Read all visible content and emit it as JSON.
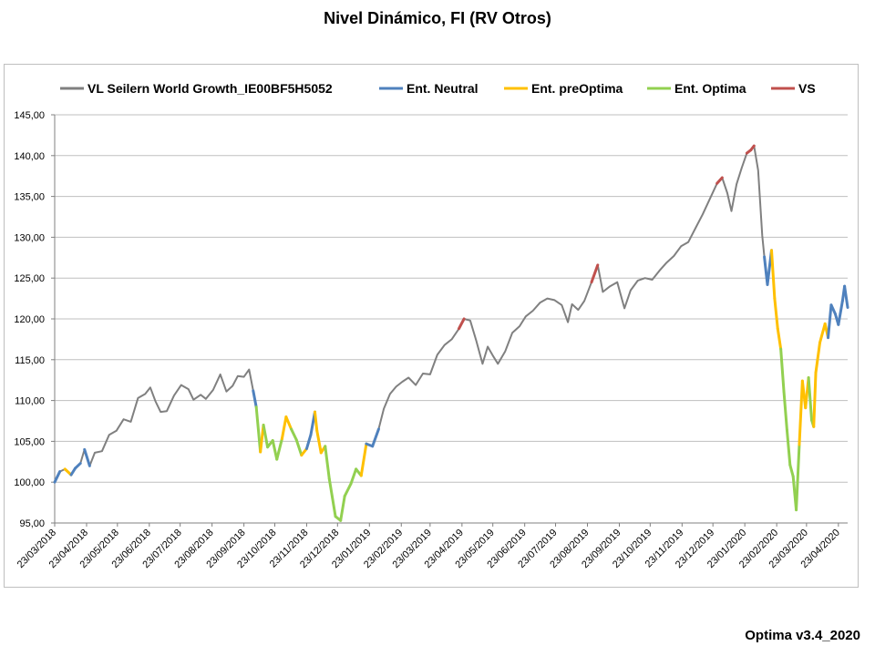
{
  "title": "Nivel Dinámico, FI (RV Otros)",
  "footer": "Optima v3.4_2020",
  "chart_data": {
    "type": "line",
    "title": "Nivel Dinámico, FI (RV Otros)",
    "ylim": [
      95,
      145
    ],
    "yticks": [
      "95,00",
      "100,00",
      "105,00",
      "110,00",
      "115,00",
      "120,00",
      "125,00",
      "130,00",
      "135,00",
      "140,00",
      "145,00"
    ],
    "xticks": [
      "23/03/2018",
      "23/04/2018",
      "23/05/2018",
      "23/06/2018",
      "23/07/2018",
      "23/08/2018",
      "23/09/2018",
      "23/10/2018",
      "23/11/2018",
      "23/12/2018",
      "23/01/2019",
      "23/02/2019",
      "23/03/2019",
      "23/04/2019",
      "23/05/2019",
      "23/06/2019",
      "23/07/2019",
      "23/08/2019",
      "23/09/2019",
      "23/10/2019",
      "23/11/2019",
      "23/12/2019",
      "23/01/2020",
      "23/02/2020",
      "23/03/2020",
      "23/04/2020"
    ],
    "grid": true,
    "legend_position": "top",
    "series": [
      {
        "name": "VL Seilern World Growth_IE00BF5H5052",
        "color": "#808080"
      },
      {
        "name": "Ent. Neutral",
        "color": "#4f81bd"
      },
      {
        "name": "Ent. preOptima",
        "color": "#ffc000"
      },
      {
        "name": "Ent. Optima",
        "color": "#92d050"
      },
      {
        "name": "VS",
        "color": "#c0504d"
      }
    ],
    "points": [
      [
        "2018-03-23",
        100.0,
        "n"
      ],
      [
        "2018-03-28",
        101.3,
        "n"
      ],
      [
        "2018-04-02",
        101.6,
        "g"
      ],
      [
        "2018-04-08",
        100.9,
        "p"
      ],
      [
        "2018-04-12",
        101.7,
        "n"
      ],
      [
        "2018-04-17",
        102.3,
        "n"
      ],
      [
        "2018-04-21",
        104.0,
        "g"
      ],
      [
        "2018-04-26",
        102.0,
        "n"
      ],
      [
        "2018-05-01",
        103.6,
        "g"
      ],
      [
        "2018-05-08",
        103.8,
        "g"
      ],
      [
        "2018-05-15",
        105.8,
        "g"
      ],
      [
        "2018-05-22",
        106.3,
        "g"
      ],
      [
        "2018-05-29",
        107.7,
        "g"
      ],
      [
        "2018-06-05",
        107.4,
        "g"
      ],
      [
        "2018-06-12",
        110.3,
        "g"
      ],
      [
        "2018-06-19",
        110.8,
        "g"
      ],
      [
        "2018-06-24",
        111.6,
        "g"
      ],
      [
        "2018-06-29",
        109.9,
        "g"
      ],
      [
        "2018-07-04",
        108.6,
        "g"
      ],
      [
        "2018-07-10",
        108.7,
        "g"
      ],
      [
        "2018-07-17",
        110.6,
        "g"
      ],
      [
        "2018-07-24",
        111.9,
        "g"
      ],
      [
        "2018-07-31",
        111.4,
        "g"
      ],
      [
        "2018-08-05",
        110.1,
        "g"
      ],
      [
        "2018-08-12",
        110.7,
        "g"
      ],
      [
        "2018-08-17",
        110.2,
        "g"
      ],
      [
        "2018-08-24",
        111.3,
        "g"
      ],
      [
        "2018-08-31",
        113.2,
        "g"
      ],
      [
        "2018-09-06",
        111.1,
        "g"
      ],
      [
        "2018-09-12",
        111.8,
        "g"
      ],
      [
        "2018-09-17",
        113.0,
        "g"
      ],
      [
        "2018-09-23",
        112.9,
        "g"
      ],
      [
        "2018-09-28",
        113.8,
        "g"
      ],
      [
        "2018-10-02",
        111.2,
        "g"
      ],
      [
        "2018-10-05",
        109.2,
        "n"
      ],
      [
        "2018-10-09",
        103.7,
        "o"
      ],
      [
        "2018-10-12",
        107.0,
        "p"
      ],
      [
        "2018-10-16",
        104.3,
        "o"
      ],
      [
        "2018-10-21",
        105.1,
        "o"
      ],
      [
        "2018-10-25",
        102.8,
        "o"
      ],
      [
        "2018-10-30",
        105.3,
        "o"
      ],
      [
        "2018-11-03",
        108.0,
        "p"
      ],
      [
        "2018-11-08",
        106.5,
        "p"
      ],
      [
        "2018-11-13",
        105.2,
        "o"
      ],
      [
        "2018-11-18",
        103.3,
        "o"
      ],
      [
        "2018-11-23",
        104.1,
        "p"
      ],
      [
        "2018-11-27",
        105.8,
        "n"
      ],
      [
        "2018-12-01",
        108.6,
        "n"
      ],
      [
        "2018-12-03",
        106.3,
        "p"
      ],
      [
        "2018-12-07",
        103.6,
        "p"
      ],
      [
        "2018-12-11",
        104.4,
        "p"
      ],
      [
        "2018-12-15",
        100.4,
        "o"
      ],
      [
        "2018-12-21",
        95.8,
        "o"
      ],
      [
        "2018-12-26",
        95.3,
        "o"
      ],
      [
        "2018-12-30",
        98.3,
        "o"
      ],
      [
        "2019-01-05",
        99.8,
        "o"
      ],
      [
        "2019-01-10",
        101.6,
        "o"
      ],
      [
        "2019-01-15",
        100.8,
        "o"
      ],
      [
        "2019-01-20",
        104.7,
        "p"
      ],
      [
        "2019-01-26",
        104.4,
        "n"
      ],
      [
        "2019-02-01",
        106.5,
        "n"
      ],
      [
        "2019-02-06",
        109.0,
        "g"
      ],
      [
        "2019-02-12",
        110.8,
        "g"
      ],
      [
        "2019-02-18",
        111.7,
        "g"
      ],
      [
        "2019-02-24",
        112.3,
        "g"
      ],
      [
        "2019-03-02",
        112.8,
        "g"
      ],
      [
        "2019-03-09",
        111.9,
        "g"
      ],
      [
        "2019-03-16",
        113.3,
        "g"
      ],
      [
        "2019-03-23",
        113.2,
        "g"
      ],
      [
        "2019-03-30",
        115.6,
        "g"
      ],
      [
        "2019-04-06",
        116.8,
        "g"
      ],
      [
        "2019-04-13",
        117.5,
        "g"
      ],
      [
        "2019-04-20",
        118.8,
        "g"
      ],
      [
        "2019-04-25",
        120.0,
        "v"
      ],
      [
        "2019-05-01",
        119.8,
        "g"
      ],
      [
        "2019-05-07",
        117.3,
        "g"
      ],
      [
        "2019-05-13",
        114.5,
        "g"
      ],
      [
        "2019-05-18",
        116.6,
        "g"
      ],
      [
        "2019-05-23",
        115.5,
        "g"
      ],
      [
        "2019-05-28",
        114.5,
        "g"
      ],
      [
        "2019-06-04",
        116.0,
        "g"
      ],
      [
        "2019-06-11",
        118.3,
        "g"
      ],
      [
        "2019-06-18",
        119.1,
        "g"
      ],
      [
        "2019-06-24",
        120.3,
        "g"
      ],
      [
        "2019-07-01",
        121.0,
        "g"
      ],
      [
        "2019-07-08",
        122.0,
        "g"
      ],
      [
        "2019-07-15",
        122.5,
        "g"
      ],
      [
        "2019-07-22",
        122.3,
        "g"
      ],
      [
        "2019-07-29",
        121.7,
        "g"
      ],
      [
        "2019-08-04",
        119.6,
        "g"
      ],
      [
        "2019-08-08",
        121.8,
        "g"
      ],
      [
        "2019-08-14",
        121.1,
        "g"
      ],
      [
        "2019-08-20",
        122.2,
        "g"
      ],
      [
        "2019-08-27",
        124.5,
        "g"
      ],
      [
        "2019-09-02",
        126.6,
        "v"
      ],
      [
        "2019-09-07",
        123.3,
        "g"
      ],
      [
        "2019-09-14",
        124.0,
        "g"
      ],
      [
        "2019-09-21",
        124.5,
        "g"
      ],
      [
        "2019-09-28",
        121.3,
        "g"
      ],
      [
        "2019-10-04",
        123.5,
        "g"
      ],
      [
        "2019-10-11",
        124.7,
        "g"
      ],
      [
        "2019-10-18",
        125.0,
        "g"
      ],
      [
        "2019-10-25",
        124.8,
        "g"
      ],
      [
        "2019-11-01",
        125.9,
        "g"
      ],
      [
        "2019-11-08",
        126.9,
        "g"
      ],
      [
        "2019-11-15",
        127.7,
        "g"
      ],
      [
        "2019-11-22",
        128.9,
        "g"
      ],
      [
        "2019-11-29",
        129.4,
        "g"
      ],
      [
        "2019-12-06",
        131.1,
        "g"
      ],
      [
        "2019-12-13",
        132.8,
        "g"
      ],
      [
        "2019-12-20",
        134.7,
        "g"
      ],
      [
        "2019-12-27",
        136.6,
        "g"
      ],
      [
        "2020-01-01",
        137.3,
        "v"
      ],
      [
        "2020-01-06",
        135.4,
        "g"
      ],
      [
        "2020-01-10",
        133.2,
        "g"
      ],
      [
        "2020-01-15",
        136.5,
        "g"
      ],
      [
        "2020-01-20",
        138.5,
        "g"
      ],
      [
        "2020-01-25",
        140.3,
        "g"
      ],
      [
        "2020-01-29",
        140.7,
        "v"
      ],
      [
        "2020-02-01",
        141.2,
        "v"
      ],
      [
        "2020-02-05",
        138.2,
        "g"
      ],
      [
        "2020-02-09",
        130.2,
        "g"
      ],
      [
        "2020-02-11",
        127.6,
        "g"
      ],
      [
        "2020-02-14",
        124.2,
        "n"
      ],
      [
        "2020-02-18",
        128.4,
        "n"
      ],
      [
        "2020-02-21",
        122.5,
        "p"
      ],
      [
        "2020-02-24",
        118.8,
        "p"
      ],
      [
        "2020-02-27",
        116.3,
        "p"
      ],
      [
        "2020-03-01",
        111.1,
        "o"
      ],
      [
        "2020-03-04",
        106.4,
        "o"
      ],
      [
        "2020-03-07",
        102.1,
        "o"
      ],
      [
        "2020-03-10",
        100.7,
        "o"
      ],
      [
        "2020-03-13",
        96.6,
        "o"
      ],
      [
        "2020-03-16",
        104.6,
        "o"
      ],
      [
        "2020-03-19",
        112.4,
        "p"
      ],
      [
        "2020-03-22",
        109.1,
        "p"
      ],
      [
        "2020-03-25",
        112.8,
        "p"
      ],
      [
        "2020-03-28",
        107.6,
        "o"
      ],
      [
        "2020-03-30",
        106.8,
        "o"
      ],
      [
        "2020-04-01",
        113.4,
        "p"
      ],
      [
        "2020-04-05",
        117.1,
        "p"
      ],
      [
        "2020-04-10",
        119.4,
        "p"
      ],
      [
        "2020-04-13",
        117.7,
        "p"
      ],
      [
        "2020-04-16",
        121.7,
        "n"
      ],
      [
        "2020-04-20",
        120.6,
        "n"
      ],
      [
        "2020-04-23",
        119.3,
        "n"
      ],
      [
        "2020-04-27",
        122.2,
        "n"
      ],
      [
        "2020-04-29",
        124.0,
        "n"
      ],
      [
        "2020-05-02",
        121.4,
        "n"
      ]
    ]
  }
}
